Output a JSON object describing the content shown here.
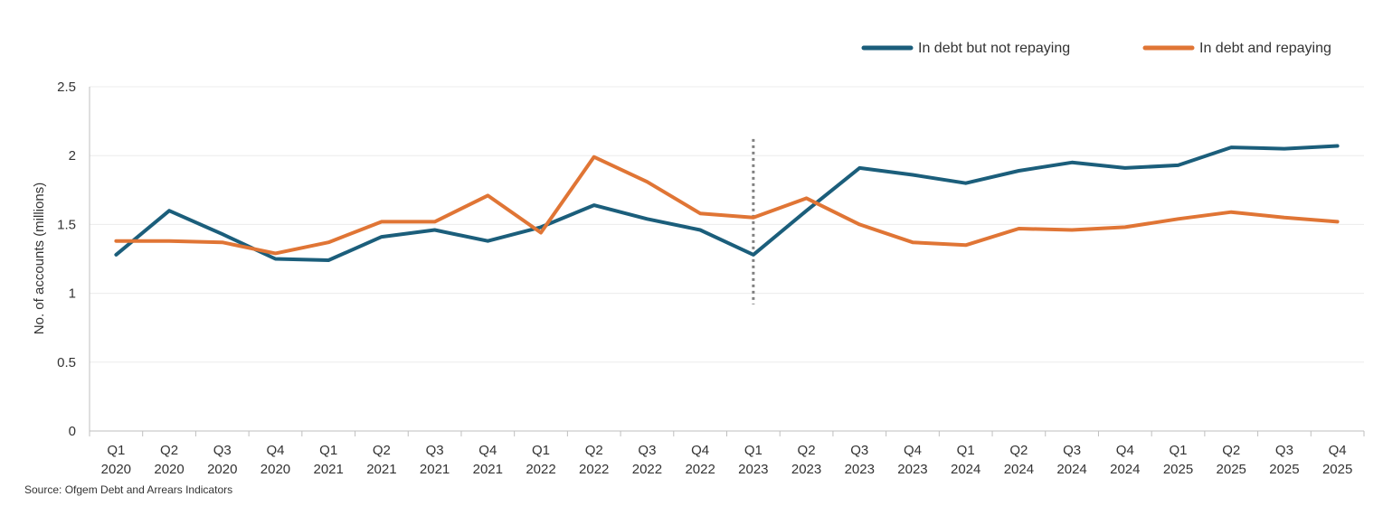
{
  "source_note": "Source: Ofgem Debt and Arrears Indicators",
  "chart_data": {
    "type": "line",
    "ylabel": "No. of accounts (millions)",
    "xlabel": "",
    "ylim": [
      0,
      2.5
    ],
    "yticks": [
      0,
      0.5,
      1,
      1.5,
      2,
      2.5
    ],
    "ytick_labels": [
      "0",
      "0.5",
      "1",
      "1.5",
      "2",
      "2.5"
    ],
    "grid": true,
    "legend_position": "top-right",
    "categories": [
      {
        "q": "Q1",
        "y": "2020"
      },
      {
        "q": "Q2",
        "y": "2020"
      },
      {
        "q": "Q3",
        "y": "2020"
      },
      {
        "q": "Q4",
        "y": "2020"
      },
      {
        "q": "Q1",
        "y": "2021"
      },
      {
        "q": "Q2",
        "y": "2021"
      },
      {
        "q": "Q3",
        "y": "2021"
      },
      {
        "q": "Q4",
        "y": "2021"
      },
      {
        "q": "Q1",
        "y": "2022"
      },
      {
        "q": "Q2",
        "y": "2022"
      },
      {
        "q": "Q3",
        "y": "2022"
      },
      {
        "q": "Q4",
        "y": "2022"
      },
      {
        "q": "Q1",
        "y": "2023"
      },
      {
        "q": "Q2",
        "y": "2023"
      },
      {
        "q": "Q3",
        "y": "2023"
      },
      {
        "q": "Q4",
        "y": "2023"
      },
      {
        "q": "Q1",
        "y": "2024"
      },
      {
        "q": "Q2",
        "y": "2024"
      },
      {
        "q": "Q3",
        "y": "2024"
      },
      {
        "q": "Q4",
        "y": "2024"
      },
      {
        "q": "Q1",
        "y": "2025"
      },
      {
        "q": "Q2",
        "y": "2025"
      },
      {
        "q": "Q3",
        "y": "2025"
      },
      {
        "q": "Q4",
        "y": "2025"
      }
    ],
    "series": [
      {
        "name": "In debt but not repaying",
        "color": "#1b5e7b",
        "values": [
          1.28,
          1.6,
          1.43,
          1.25,
          1.24,
          1.41,
          1.46,
          1.38,
          1.48,
          1.64,
          1.54,
          1.46,
          1.28,
          1.6,
          1.91,
          1.86,
          1.8,
          1.89,
          1.95,
          1.91,
          1.93,
          2.06,
          2.05,
          2.07
        ]
      },
      {
        "name": "In debt and repaying",
        "color": "#e07535",
        "values": [
          1.38,
          1.38,
          1.37,
          1.29,
          1.37,
          1.52,
          1.52,
          1.71,
          1.44,
          1.99,
          1.81,
          1.58,
          1.55,
          1.69,
          1.5,
          1.37,
          1.35,
          1.47,
          1.46,
          1.48,
          1.54,
          1.59,
          1.55,
          1.52
        ]
      }
    ],
    "divider": {
      "category_index": 12,
      "y_range": [
        0.92,
        2.12
      ],
      "style": "dotted",
      "color": "#808080"
    }
  }
}
